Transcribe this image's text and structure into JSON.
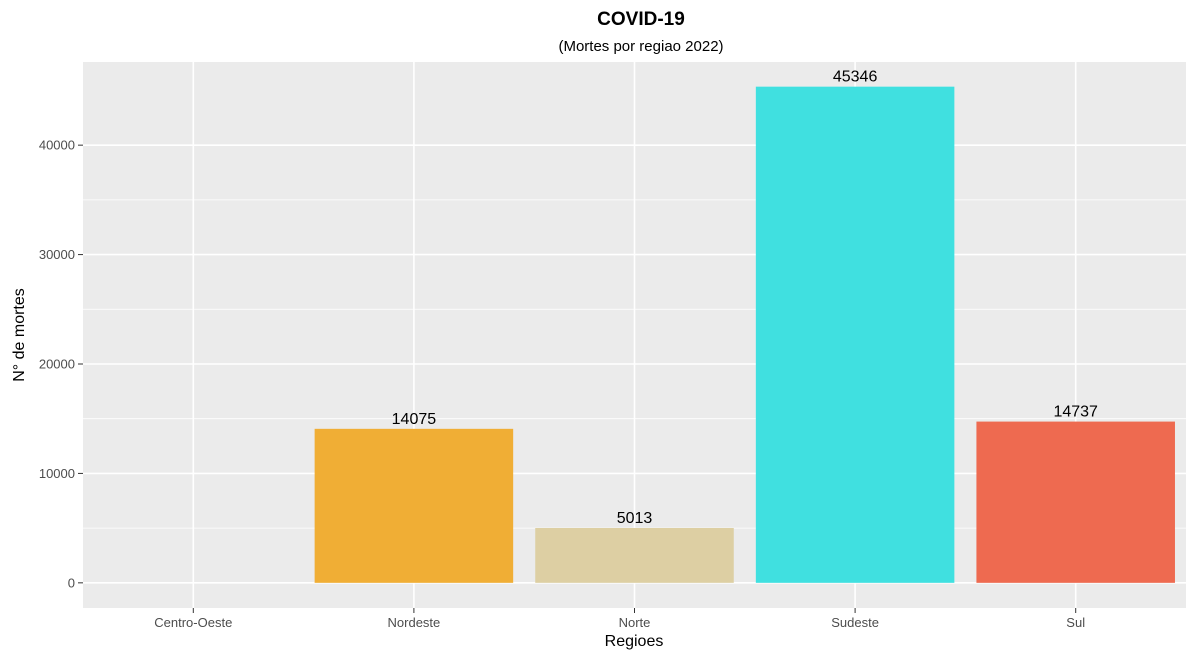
{
  "chart_data": {
    "type": "bar",
    "title": "COVID-19",
    "subtitle": "(Mortes por regiao 2022)",
    "xlabel": "Regioes",
    "ylabel": "N° de mortes",
    "categories": [
      "Centro-Oeste",
      "Nordeste",
      "Norte",
      "Sudeste",
      "Sul"
    ],
    "values": [
      0,
      14075,
      5013,
      45346,
      14737
    ],
    "value_labels": [
      "",
      "14075",
      "5013",
      "45346",
      "14737"
    ],
    "colors": [
      "#f8766d",
      "#f0ae35",
      "#ddcfa3",
      "#40e0e0",
      "#ee6a50"
    ],
    "ylim": [
      -2300,
      47600
    ],
    "yticks": [
      0,
      10000,
      20000,
      30000,
      40000
    ],
    "ytick_labels": [
      "0",
      "10000",
      "20000",
      "30000",
      "40000"
    ],
    "grid": true,
    "legend": "none",
    "panel_background": "#ebebeb",
    "grid_color": "#ffffff"
  }
}
